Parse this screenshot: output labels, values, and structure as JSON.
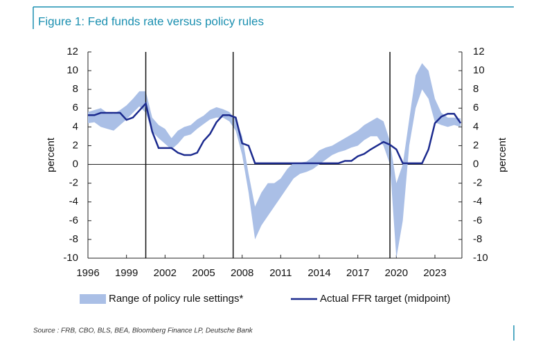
{
  "chart_data": {
    "type": "line",
    "title": "Figure 1: Fed funds rate versus policy rules",
    "ylabel": "percent",
    "y2label": "percent",
    "source": "Source : FRB, CBO, BLS, BEA, Bloomberg Finance LP, Deutsche Bank",
    "x": [
      1996,
      1996.5,
      1997,
      1997.5,
      1998,
      1998.5,
      1999,
      1999.5,
      2000,
      2000.5,
      2001,
      2001.5,
      2002,
      2002.5,
      2003,
      2003.5,
      2004,
      2004.5,
      2005,
      2005.5,
      2006,
      2006.5,
      2007,
      2007.5,
      2008,
      2008.5,
      2009,
      2009.5,
      2010,
      2010.5,
      2011,
      2011.5,
      2012,
      2012.5,
      2013,
      2013.5,
      2014,
      2014.5,
      2015,
      2015.5,
      2016,
      2016.5,
      2017,
      2017.5,
      2018,
      2018.5,
      2019,
      2019.5,
      2020,
      2020.5,
      2021,
      2021.5,
      2022,
      2022.5,
      2023,
      2023.5,
      2024,
      2024.5,
      2025
    ],
    "series": [
      {
        "name": "Range of policy rule settings*",
        "kind": "band",
        "color": "#aabfe6",
        "low": [
          4.4,
          4.5,
          4.0,
          3.8,
          3.6,
          4.2,
          4.8,
          5.5,
          6.2,
          5.5,
          3.5,
          2.8,
          2.2,
          1.6,
          2.2,
          3.0,
          3.2,
          3.8,
          4.3,
          4.8,
          5.0,
          5.0,
          4.6,
          3.6,
          1.0,
          -3.0,
          -8.0,
          -6.5,
          -5.5,
          -4.5,
          -3.5,
          -2.5,
          -1.5,
          -1.0,
          -0.8,
          -0.5,
          0,
          0.5,
          1.0,
          1.3,
          1.5,
          1.8,
          2.0,
          2.6,
          3.0,
          3.0,
          2.0,
          0,
          -10,
          -6,
          2.0,
          6.0,
          8.0,
          7.0,
          4.5,
          4.2,
          4.0,
          4.2,
          4.0
        ],
        "high": [
          5.6,
          5.8,
          6.0,
          5.5,
          5.4,
          5.8,
          6.3,
          7.0,
          7.8,
          7.8,
          5.0,
          4.2,
          3.8,
          2.8,
          3.6,
          4.0,
          4.2,
          4.8,
          5.2,
          5.8,
          6.1,
          5.9,
          5.6,
          4.8,
          3.0,
          -1.0,
          -4.5,
          -3.0,
          -2.0,
          -2.0,
          -1.5,
          -0.5,
          0.2,
          0.2,
          0.3,
          0.8,
          1.5,
          1.8,
          2.0,
          2.4,
          2.8,
          3.2,
          3.6,
          4.2,
          4.6,
          5.0,
          4.6,
          2.5,
          -2,
          0,
          4.8,
          9.5,
          10.8,
          10.0,
          7.0,
          5.5,
          5.0,
          5.0,
          4.9
        ]
      },
      {
        "name": "Actual FFR target (midpoint)",
        "kind": "line",
        "color": "#1b2a8e",
        "values": [
          5.25,
          5.25,
          5.5,
          5.5,
          5.5,
          5.5,
          4.75,
          5.0,
          5.75,
          6.5,
          3.5,
          1.75,
          1.75,
          1.75,
          1.25,
          1.0,
          1.0,
          1.25,
          2.5,
          3.25,
          4.5,
          5.25,
          5.25,
          5.0,
          2.25,
          2.0,
          0.125,
          0.125,
          0.125,
          0.125,
          0.125,
          0.125,
          0.125,
          0.125,
          0.125,
          0.125,
          0.125,
          0.125,
          0.125,
          0.125,
          0.375,
          0.375,
          0.875,
          1.125,
          1.6,
          2.0,
          2.4,
          2.1,
          1.6,
          0.125,
          0.125,
          0.125,
          0.125,
          1.6,
          4.4,
          5.1,
          5.4,
          5.4,
          4.4
        ]
      }
    ],
    "vlines": [
      2000.5,
      2007.3,
      2019.5
    ],
    "xlim": [
      1996,
      2025.1
    ],
    "xticks": [
      1996,
      1999,
      2002,
      2005,
      2008,
      2011,
      2014,
      2017,
      2020,
      2023
    ],
    "ylim": [
      -10,
      12
    ],
    "yticks": [
      12,
      10,
      8,
      6,
      4,
      2,
      0,
      -2,
      -4,
      -6,
      -8,
      -10
    ],
    "y2lim": [
      -10,
      12
    ],
    "y2ticks": [
      12,
      10,
      8,
      6,
      4,
      2,
      0,
      -2,
      -4,
      -6,
      -8,
      -10
    ]
  }
}
